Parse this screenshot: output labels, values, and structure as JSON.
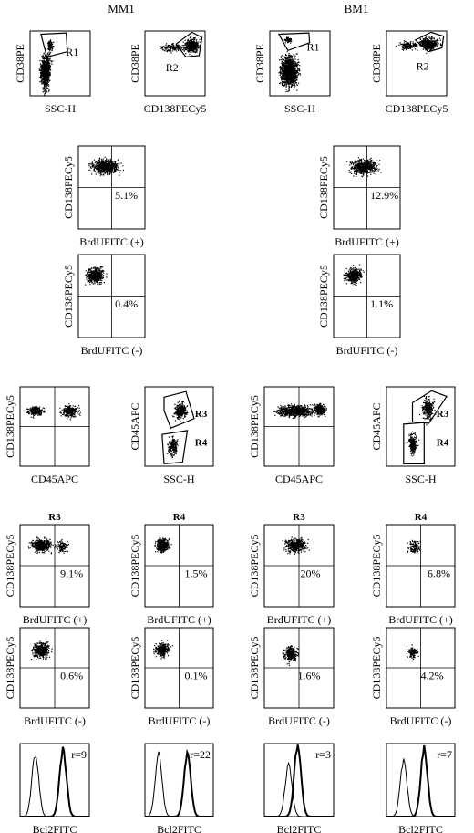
{
  "column_titles": [
    "MM1",
    "BM1"
  ],
  "panels": [
    {
      "id": "mm1-gate-r1",
      "type": "scatter",
      "box": [
        33,
        34,
        66,
        71
      ],
      "xlabel": "SSC-H",
      "ylabel": "CD38PE",
      "gates": [
        "R1"
      ]
    },
    {
      "id": "mm1-gate-r2",
      "type": "scatter",
      "box": [
        159,
        34,
        66,
        71
      ],
      "xlabel": "CD138PECy5",
      "ylabel": "CD38PE",
      "gates": [
        "R2"
      ]
    },
    {
      "id": "bm1-gate-r1",
      "type": "scatter",
      "box": [
        296,
        34,
        66,
        71
      ],
      "xlabel": "SSC-H",
      "ylabel": "CD38PE",
      "gates": [
        "R1"
      ]
    },
    {
      "id": "bm1-gate-r2",
      "type": "scatter",
      "box": [
        424,
        34,
        66,
        71
      ],
      "xlabel": "CD138PECy5",
      "ylabel": "CD38PE",
      "gates": [
        "R2"
      ]
    },
    {
      "id": "mm1-brdu-pos",
      "type": "quadrant",
      "box": [
        86,
        160,
        73,
        91
      ],
      "xlabel": "BrdUFITC (+)",
      "ylabel": "CD138PECy5",
      "percent": "5.1%"
    },
    {
      "id": "bm1-brdu-pos",
      "type": "quadrant",
      "box": [
        366,
        160,
        73,
        91
      ],
      "xlabel": "BrdUFITC (+)",
      "ylabel": "CD138PECy5",
      "percent": "12.9%"
    },
    {
      "id": "mm1-brdu-neg",
      "type": "quadrant",
      "box": [
        86,
        279,
        73,
        91
      ],
      "xlabel": "BrdUFITC (-)",
      "ylabel": "CD138PECy5",
      "percent": "0.4%"
    },
    {
      "id": "bm1-brdu-neg",
      "type": "quadrant",
      "box": [
        366,
        279,
        73,
        91
      ],
      "xlabel": "BrdUFITC (-)",
      "ylabel": "CD138PECy5",
      "percent": "1.1%"
    },
    {
      "id": "mm1-cd45",
      "type": "quadrant",
      "box": [
        22,
        424,
        76,
        87
      ],
      "xlabel": "CD45APC",
      "ylabel": "CD138PECy5",
      "percent": ""
    },
    {
      "id": "mm1-ssc-r34",
      "type": "scatter",
      "box": [
        159,
        424,
        75,
        87
      ],
      "xlabel": "SSC-H",
      "ylabel": "CD45APC",
      "gates": [
        "R3",
        "R4"
      ]
    },
    {
      "id": "bm1-cd45",
      "type": "quadrant",
      "box": [
        290,
        424,
        76,
        87
      ],
      "xlabel": "CD45APC",
      "ylabel": "CD138PECy5",
      "percent": ""
    },
    {
      "id": "bm1-ssc-r34",
      "type": "scatter",
      "box": [
        424,
        424,
        75,
        87
      ],
      "xlabel": "SSC-H",
      "ylabel": "CD45APC",
      "gates": [
        "R3",
        "R4"
      ]
    },
    {
      "id": "mm1-r3-pos",
      "type": "quadrant",
      "box": [
        22,
        575,
        76,
        90
      ],
      "title": "R3",
      "xlabel": "BrdUFITC (+)",
      "ylabel": "CD138PECy5",
      "percent": "9.1%"
    },
    {
      "id": "mm1-r4-pos",
      "type": "quadrant",
      "box": [
        159,
        575,
        75,
        90
      ],
      "title": "R4",
      "xlabel": "BrdUFITC (+)",
      "ylabel": "CD138PECy5",
      "percent": "1.5%"
    },
    {
      "id": "bm1-r3-pos",
      "type": "quadrant",
      "box": [
        290,
        575,
        76,
        90
      ],
      "title": "R3",
      "xlabel": "BrdUFITC (+)",
      "ylabel": "CD138PECy5",
      "percent": "20%"
    },
    {
      "id": "bm1-r4-pos",
      "type": "quadrant",
      "box": [
        424,
        575,
        75,
        90
      ],
      "title": "R4",
      "xlabel": "BrdUFITC (+)",
      "ylabel": "CD138PECy5",
      "percent": "6.8%"
    },
    {
      "id": "mm1-r3-neg",
      "type": "quadrant",
      "box": [
        22,
        688,
        76,
        88
      ],
      "xlabel": "BrdUFITC (-)",
      "ylabel": "CD138PECy5",
      "percent": "0.6%"
    },
    {
      "id": "mm1-r4-neg",
      "type": "quadrant",
      "box": [
        159,
        688,
        75,
        88
      ],
      "xlabel": "BrdUFITC (-)",
      "ylabel": "CD138PECy5",
      "percent": "0.1%"
    },
    {
      "id": "bm1-r3-neg",
      "type": "quadrant",
      "box": [
        290,
        688,
        76,
        88
      ],
      "xlabel": "BrdUFITC (-)",
      "ylabel": "CD138PECy5",
      "percent": "1.6%"
    },
    {
      "id": "bm1-r4-neg",
      "type": "quadrant",
      "box": [
        424,
        688,
        75,
        88
      ],
      "xlabel": "BrdUFITC (-)",
      "ylabel": "CD138PECy5",
      "percent": "4.2%"
    },
    {
      "id": "mm1-r3-bcl2",
      "type": "histogram",
      "box": [
        22,
        815,
        76,
        80
      ],
      "xlabel": "Bcl2FITC",
      "ratio": "r=9"
    },
    {
      "id": "mm1-r4-bcl2",
      "type": "histogram",
      "box": [
        159,
        815,
        75,
        80
      ],
      "xlabel": "Bcl2FITC",
      "ratio": "r=22"
    },
    {
      "id": "bm1-r3-bcl2",
      "type": "histogram",
      "box": [
        290,
        815,
        76,
        80
      ],
      "xlabel": "Bcl2FITC",
      "ratio": "r=3"
    },
    {
      "id": "bm1-r4-bcl2",
      "type": "histogram",
      "box": [
        424,
        815,
        75,
        80
      ],
      "xlabel": "Bcl2FITC",
      "ratio": "r=7"
    }
  ]
}
